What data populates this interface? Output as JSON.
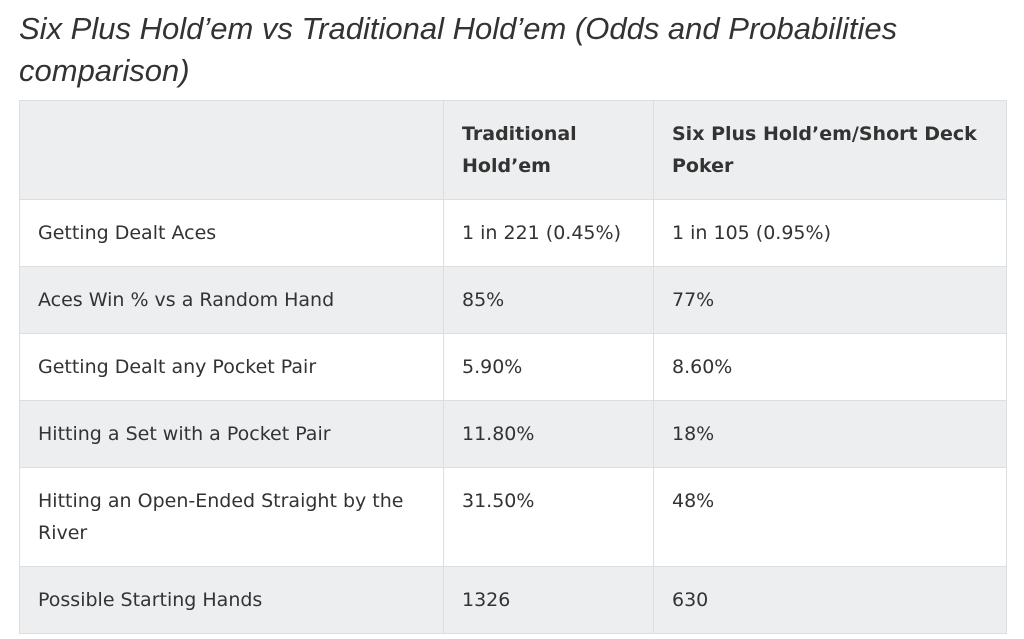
{
  "header": {
    "title": "Six Plus Hold’em vs Traditional Hold’em (Odds and Probabilities comparison)"
  },
  "table": {
    "columns": [
      "Traditional Hold’em",
      "Six Plus Hold’em/Short Deck Poker"
    ],
    "rows": [
      [
        "Getting Dealt Aces",
        "1 in 221 (0.45%)",
        "1 in 105 (0.95%)"
      ],
      [
        "Aces Win % vs a Random Hand",
        "85%",
        "77%"
      ],
      [
        "Getting Dealt any Pocket Pair",
        "5.90%",
        "8.60%"
      ],
      [
        "Hitting a Set with a Pocket Pair",
        "11.80%",
        "18%"
      ],
      [
        "Hitting an Open-Ended Straight by the River",
        "31.50%",
        "48%"
      ],
      [
        "Possible Starting Hands",
        "1326",
        "630"
      ]
    ]
  }
}
